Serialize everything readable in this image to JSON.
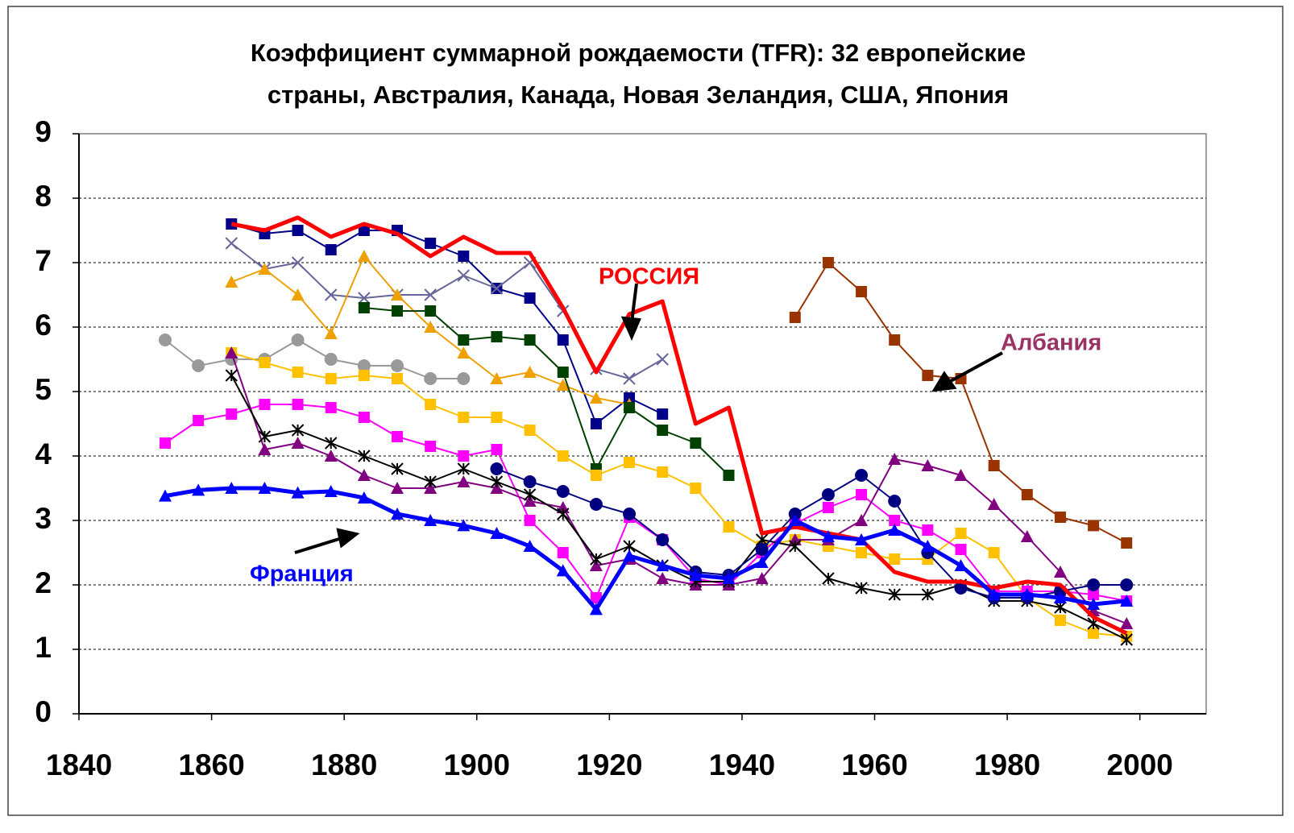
{
  "chart_data": {
    "type": "line",
    "title_lines": [
      "Коэффициент суммарной рождаемости (TFR): 32 европейские",
      "страны, Австралия, Канада, Новая Зеландия, США, Япония"
    ],
    "annotations": [
      {
        "text": "РОССИЯ",
        "color": "#ff0000"
      },
      {
        "text": "Албания",
        "color": "#993366"
      },
      {
        "text": "Франция",
        "color": "#0000ff"
      }
    ],
    "xlim": [
      1840,
      2010
    ],
    "xticks": [
      1840,
      1860,
      1880,
      1900,
      1920,
      1940,
      1960,
      1980,
      2000
    ],
    "ylim": [
      0,
      9
    ],
    "yticks": [
      0,
      1,
      2,
      3,
      4,
      5,
      6,
      7,
      8,
      9
    ],
    "grid": true,
    "series": [
      {
        "color": "#00008b",
        "marker": "square",
        "width": 2,
        "x": [
          1863,
          1868,
          1873,
          1878,
          1883,
          1888,
          1893,
          1898,
          1903,
          1908,
          1913,
          1918,
          1923,
          1928
        ],
        "values": [
          7.6,
          7.45,
          7.5,
          7.2,
          7.5,
          7.5,
          7.3,
          7.1,
          6.6,
          6.45,
          5.8,
          4.5,
          4.9,
          4.65
        ]
      },
      {
        "color": "#666699",
        "marker": "x",
        "width": 2,
        "x": [
          1863,
          1868,
          1873,
          1878,
          1883,
          1888,
          1893,
          1898,
          1903,
          1908,
          1913,
          1918,
          1923,
          1928
        ],
        "values": [
          7.3,
          6.9,
          7.0,
          6.5,
          6.45,
          6.5,
          6.5,
          6.8,
          6.6,
          7.0,
          6.25,
          5.35,
          5.2,
          5.5
        ]
      },
      {
        "color": "#f0a000",
        "marker": "triangle",
        "width": 2,
        "x": [
          1863,
          1868,
          1873,
          1878,
          1883,
          1888,
          1893,
          1898,
          1903,
          1908,
          1913,
          1918,
          1923
        ],
        "values": [
          6.7,
          6.9,
          6.5,
          5.9,
          7.1,
          6.5,
          6.0,
          5.6,
          5.2,
          5.3,
          5.1,
          4.9,
          4.8
        ]
      },
      {
        "color": "#999999",
        "marker": "circle",
        "width": 2,
        "x": [
          1853,
          1858,
          1863,
          1868,
          1873,
          1878,
          1883,
          1888,
          1893,
          1898
        ],
        "values": [
          5.8,
          5.4,
          5.5,
          5.5,
          5.8,
          5.5,
          5.4,
          5.4,
          5.2,
          5.2
        ]
      },
      {
        "color": "#004000",
        "marker": "square",
        "width": 2,
        "x": [
          1883,
          1888,
          1893,
          1898,
          1903,
          1908,
          1913,
          1918,
          1923,
          1928,
          1933,
          1938
        ],
        "values": [
          6.3,
          6.25,
          6.25,
          5.8,
          5.85,
          5.8,
          5.3,
          3.8,
          4.75,
          4.4,
          4.2,
          3.7
        ]
      },
      {
        "color": "#ffc000",
        "marker": "square",
        "width": 2,
        "x": [
          1863,
          1868,
          1873,
          1878,
          1883,
          1888,
          1893,
          1898,
          1903,
          1908,
          1913,
          1918,
          1923,
          1928,
          1933,
          1938,
          1943,
          1948,
          1953,
          1958,
          1963,
          1968,
          1973,
          1978,
          1983,
          1988,
          1993,
          1998
        ],
        "values": [
          5.6,
          5.45,
          5.3,
          5.2,
          5.25,
          5.2,
          4.8,
          4.6,
          4.6,
          4.4,
          4.0,
          3.7,
          3.9,
          3.75,
          3.5,
          2.9,
          2.6,
          2.7,
          2.6,
          2.5,
          2.4,
          2.4,
          2.8,
          2.5,
          1.8,
          1.45,
          1.25,
          1.2
        ]
      },
      {
        "color": "#ff00ff",
        "marker": "square",
        "width": 2,
        "x": [
          1853,
          1858,
          1863,
          1868,
          1873,
          1878,
          1883,
          1888,
          1893,
          1898,
          1903,
          1908,
          1913,
          1918,
          1923,
          1928,
          1933,
          1938,
          1943,
          1948,
          1953,
          1958,
          1963,
          1968,
          1973,
          1978,
          1983,
          1988,
          1993,
          1998
        ],
        "values": [
          4.2,
          4.55,
          4.65,
          4.8,
          4.8,
          4.75,
          4.6,
          4.3,
          4.15,
          4.0,
          4.1,
          3.0,
          2.5,
          1.8,
          3.05,
          2.7,
          2.1,
          2.0,
          2.5,
          2.95,
          3.2,
          3.4,
          3.0,
          2.85,
          2.55,
          1.9,
          1.9,
          1.9,
          1.85,
          1.75
        ]
      },
      {
        "color": "#800080",
        "marker": "triangle",
        "width": 2,
        "x": [
          1863,
          1868,
          1873,
          1878,
          1883,
          1888,
          1893,
          1898,
          1903,
          1908,
          1913,
          1918,
          1923,
          1928,
          1933,
          1938,
          1943,
          1948,
          1953,
          1958,
          1963,
          1968,
          1973,
          1978,
          1983,
          1988,
          1993,
          1998
        ],
        "values": [
          5.6,
          4.1,
          4.2,
          4.0,
          3.7,
          3.5,
          3.5,
          3.6,
          3.5,
          3.3,
          3.2,
          2.3,
          2.4,
          2.1,
          2.0,
          2.0,
          2.1,
          2.7,
          2.7,
          3.0,
          3.95,
          3.85,
          3.7,
          3.25,
          2.75,
          2.2,
          1.6,
          1.4
        ]
      },
      {
        "color": "#000000",
        "marker": "star",
        "width": 2,
        "x": [
          1863,
          1868,
          1873,
          1878,
          1883,
          1888,
          1893,
          1898,
          1903,
          1908,
          1913,
          1918,
          1923,
          1928,
          1933,
          1938,
          1943,
          1948,
          1953,
          1958,
          1963,
          1968,
          1973,
          1978,
          1983,
          1988,
          1993,
          1998
        ],
        "values": [
          5.25,
          4.3,
          4.4,
          4.2,
          4.0,
          3.8,
          3.6,
          3.8,
          3.6,
          3.4,
          3.1,
          2.4,
          2.6,
          2.3,
          2.05,
          2.05,
          2.7,
          2.6,
          2.1,
          1.95,
          1.85,
          1.85,
          2.0,
          1.75,
          1.75,
          1.65,
          1.4,
          1.15
        ]
      },
      {
        "color": "#000080",
        "marker": "circle",
        "width": 2,
        "x": [
          1903,
          1908,
          1913,
          1918,
          1923,
          1928,
          1933,
          1938,
          1943,
          1948,
          1953,
          1958,
          1963,
          1968,
          1973,
          1978,
          1983,
          1988,
          1993,
          1998
        ],
        "values": [
          3.8,
          3.6,
          3.45,
          3.25,
          3.1,
          2.7,
          2.2,
          2.15,
          2.55,
          3.1,
          3.4,
          3.7,
          3.3,
          2.5,
          1.95,
          1.8,
          1.8,
          1.9,
          2.0,
          2.0
        ]
      },
      {
        "color": "#993300",
        "marker": "square",
        "width": 2,
        "x": [
          1948,
          1953,
          1958,
          1963,
          1968,
          1973,
          1978,
          1983,
          1988,
          1993,
          1998
        ],
        "values": [
          6.15,
          7.0,
          6.55,
          5.8,
          5.25,
          5.2,
          3.85,
          3.4,
          3.05,
          2.92,
          2.65
        ]
      },
      {
        "color": "#ff0000",
        "marker": "none",
        "width": 5,
        "x": [
          1863,
          1868,
          1873,
          1878,
          1883,
          1888,
          1893,
          1898,
          1903,
          1908,
          1913,
          1918,
          1923,
          1928,
          1933,
          1938,
          1943,
          1948,
          1953,
          1958,
          1963,
          1968,
          1973,
          1978,
          1983,
          1988,
          1993,
          1998
        ],
        "values": [
          7.6,
          7.5,
          7.7,
          7.4,
          7.6,
          7.45,
          7.1,
          7.4,
          7.15,
          7.15,
          6.3,
          5.3,
          6.2,
          6.4,
          4.5,
          4.75,
          2.8,
          2.9,
          2.8,
          2.7,
          2.2,
          2.05,
          2.05,
          1.95,
          2.05,
          2.0,
          1.5,
          1.25
        ]
      },
      {
        "color": "#0000ff",
        "marker": "triangle",
        "width": 5,
        "x": [
          1853,
          1858,
          1863,
          1868,
          1873,
          1878,
          1883,
          1888,
          1893,
          1898,
          1903,
          1908,
          1913,
          1918,
          1923,
          1928,
          1933,
          1938,
          1943,
          1948,
          1953,
          1958,
          1963,
          1968,
          1973,
          1978,
          1983,
          1988,
          1993,
          1998
        ],
        "values": [
          3.38,
          3.47,
          3.5,
          3.5,
          3.43,
          3.45,
          3.35,
          3.1,
          3.0,
          2.92,
          2.8,
          2.6,
          2.22,
          1.62,
          2.45,
          2.3,
          2.15,
          2.1,
          2.35,
          3.0,
          2.75,
          2.7,
          2.85,
          2.6,
          2.3,
          1.85,
          1.85,
          1.8,
          1.7,
          1.75
        ]
      }
    ]
  }
}
